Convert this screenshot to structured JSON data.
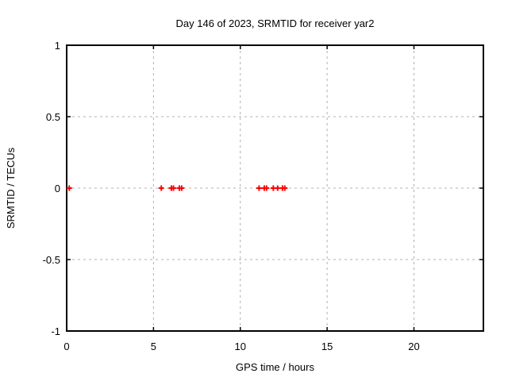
{
  "chart_data": {
    "type": "scatter",
    "title": "Day 146 of 2023, SRMTID for receiver yar2",
    "xlabel": "GPS time / hours",
    "ylabel": "SRMTID / TECUs",
    "xlim": [
      0,
      24
    ],
    "ylim": [
      -1,
      1
    ],
    "xtick_values": [
      0,
      5,
      10,
      15,
      20
    ],
    "xtick_labels": [
      "0",
      "5",
      "10",
      "15",
      "20"
    ],
    "ytick_values": [
      1,
      0.5,
      0,
      -0.5,
      -1
    ],
    "ytick_labels": [
      "1",
      "0.5",
      "0",
      "-0.5",
      "-1"
    ],
    "grid": true,
    "legend_position": "none",
    "marker": "plus",
    "marker_color": "#ff0000",
    "axis_color": "#000000",
    "grid_color": "#b0b0b0",
    "background_color": "#ffffff",
    "series": [
      {
        "name": "SRMTID",
        "points": [
          [
            0.15,
            0
          ],
          [
            5.45,
            0
          ],
          [
            6.03,
            0
          ],
          [
            6.15,
            0
          ],
          [
            6.49,
            0
          ],
          [
            6.62,
            0
          ],
          [
            11.08,
            0
          ],
          [
            11.38,
            0
          ],
          [
            11.51,
            0
          ],
          [
            11.9,
            0
          ],
          [
            12.15,
            0
          ],
          [
            12.43,
            0
          ],
          [
            12.56,
            0
          ]
        ]
      }
    ]
  }
}
